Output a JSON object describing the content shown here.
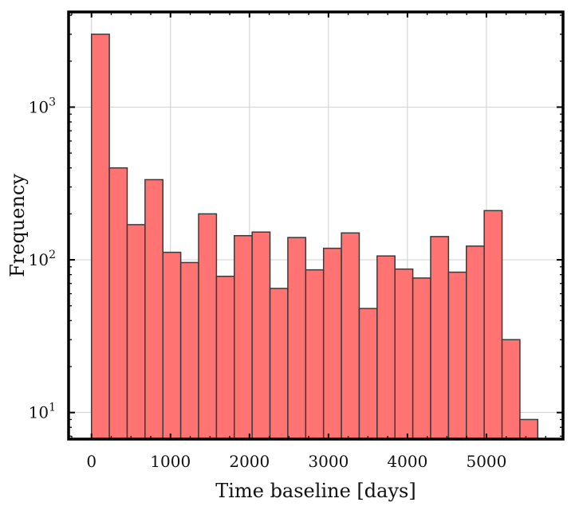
{
  "chart_data": {
    "type": "bar",
    "subtype": "histogram",
    "title": "",
    "xlabel": "Time baseline [days]",
    "ylabel": "Frequency",
    "yscale": "log",
    "xlim": [
      -290,
      5970
    ],
    "ylim": [
      6.7,
      4200
    ],
    "grid": true,
    "bar_color": "#ff7373",
    "edge_color": "#3a3a3a",
    "x_ticks": [
      {
        "value": 0,
        "label": "0"
      },
      {
        "value": 1000,
        "label": "1000"
      },
      {
        "value": 2000,
        "label": "2000"
      },
      {
        "value": 3000,
        "label": "3000"
      },
      {
        "value": 4000,
        "label": "4000"
      },
      {
        "value": 5000,
        "label": "5000"
      }
    ],
    "y_ticks": [
      {
        "value": 10,
        "base": "10",
        "exp": "1"
      },
      {
        "value": 100,
        "base": "10",
        "exp": "2"
      },
      {
        "value": 1000,
        "base": "10",
        "exp": "3"
      }
    ],
    "bin_edges": [
      0,
      226,
      452,
      678,
      904,
      1130,
      1356,
      1582,
      1808,
      2034,
      2260,
      2486,
      2712,
      2938,
      3164,
      3390,
      3616,
      3842,
      4068,
      4294,
      4520,
      4746,
      4972,
      5198,
      5424,
      5650
    ],
    "counts": [
      3000,
      400,
      170,
      335,
      112,
      96,
      200,
      78,
      144,
      152,
      65,
      140,
      86,
      119,
      150,
      48,
      106,
      87,
      76,
      142,
      83,
      123,
      210,
      30,
      9
    ]
  }
}
